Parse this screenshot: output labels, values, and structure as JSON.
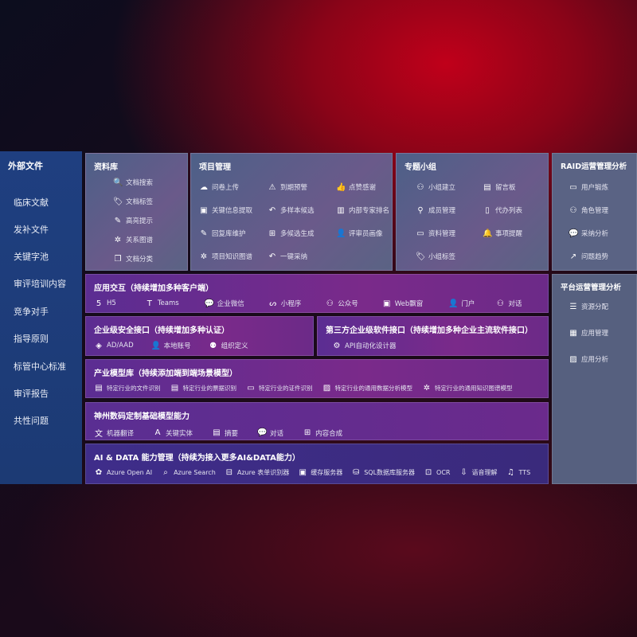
{
  "sidebar": {
    "title": "外部文件",
    "items": [
      "临床文献",
      "发补文件",
      "关键字池",
      "审评培训内容",
      "竞争对手",
      "指导原则",
      "标管中心标准",
      "审评报告",
      "共性问题"
    ]
  },
  "library": {
    "title": "资料库",
    "items": [
      {
        "icon": "doc-search-icon",
        "label": "文档搜索"
      },
      {
        "icon": "tag-icon",
        "label": "文档标签"
      },
      {
        "icon": "pen-icon",
        "label": "高亮提示"
      },
      {
        "icon": "graph-icon",
        "label": "关系图谱"
      },
      {
        "icon": "doc-copy-icon",
        "label": "文档分类"
      }
    ]
  },
  "project": {
    "title": "项目管理",
    "items": [
      {
        "icon": "cloud-upload-icon",
        "label": "问卷上传"
      },
      {
        "icon": "alarm-icon",
        "label": "到期预警"
      },
      {
        "icon": "thumbs-up-icon",
        "label": "点赞感谢"
      },
      {
        "icon": "window-icon",
        "label": "关键信息提取"
      },
      {
        "icon": "reply-icon",
        "label": "多样本候选"
      },
      {
        "icon": "ranking-icon",
        "label": "内部专家排名"
      },
      {
        "icon": "edit-icon",
        "label": "回复库维护"
      },
      {
        "icon": "puzzle-icon",
        "label": "多候选生成"
      },
      {
        "icon": "user-icon",
        "label": "评审员画像"
      },
      {
        "icon": "graph-icon",
        "label": "项目知识图谱"
      },
      {
        "icon": "reply-icon",
        "label": "一键采纳"
      }
    ]
  },
  "group": {
    "title": "专题小组",
    "items": [
      {
        "icon": "group-icon",
        "label": "小组建立"
      },
      {
        "icon": "bbs-icon",
        "label": "留言板"
      },
      {
        "icon": "user-add-icon",
        "label": "成员管理"
      },
      {
        "icon": "clipboard-icon",
        "label": "代办列表"
      },
      {
        "icon": "folder-icon",
        "label": "资料管理"
      },
      {
        "icon": "bell-icon",
        "label": "事项提醒"
      },
      {
        "icon": "tag-icon",
        "label": "小组标签"
      }
    ]
  },
  "raid": {
    "title": "RAID运营管理分析",
    "items": [
      {
        "icon": "id-card-icon",
        "label": "用户锻炼"
      },
      {
        "icon": "group-icon",
        "label": "角色管理"
      },
      {
        "icon": "qa-icon",
        "label": "采纳分析"
      },
      {
        "icon": "trend-icon",
        "label": "问题趋势"
      }
    ]
  },
  "platform": {
    "title": "平台运营管理分析",
    "items": [
      {
        "icon": "list-icon",
        "label": "资源分配"
      },
      {
        "icon": "apps-icon",
        "label": "应用管理"
      },
      {
        "icon": "chart-icon",
        "label": "应用分析"
      }
    ]
  },
  "interaction": {
    "title": "应用交互（持续增加多种客户端）",
    "items": [
      {
        "icon": "html5-icon",
        "label": "H5"
      },
      {
        "icon": "teams-icon",
        "label": "Teams"
      },
      {
        "icon": "wechat-icon",
        "label": "企业微信"
      },
      {
        "icon": "miniprogram-icon",
        "label": "小程序"
      },
      {
        "icon": "group-icon",
        "label": "公众号"
      },
      {
        "icon": "window-icon",
        "label": "Web飘窗"
      },
      {
        "icon": "portal-icon",
        "label": "门户"
      },
      {
        "icon": "chat-users-icon",
        "label": "对话"
      }
    ]
  },
  "security": {
    "title": "企业级安全接口（持续增加多种认证）",
    "items": [
      {
        "icon": "ad-icon",
        "label": "AD/AAD"
      },
      {
        "icon": "user-icon",
        "label": "本地账号"
      },
      {
        "icon": "org-icon",
        "label": "组织定义"
      }
    ]
  },
  "thirdparty": {
    "title": "第三方企业级软件接口（持续增加多种企业主流软件接口）",
    "items": [
      {
        "icon": "gear-icon",
        "label": "API自动化设计器"
      }
    ]
  },
  "industry": {
    "title": "产业模型库（持续添加端到端场景模型）",
    "items": [
      {
        "icon": "doc-icon",
        "label": "特定行业的文件识别"
      },
      {
        "icon": "receipt-icon",
        "label": "特定行业的票据识别"
      },
      {
        "icon": "id-card-icon",
        "label": "特定行业的证件识别"
      },
      {
        "icon": "image-icon",
        "label": "特定行业的通用数据分析模型"
      },
      {
        "icon": "graph-icon",
        "label": "特定行业的通用知识图谱模型"
      }
    ]
  },
  "base": {
    "title": "神州数码定制基础模型能力",
    "items": [
      {
        "icon": "translate-icon",
        "label": "机器翻译"
      },
      {
        "icon": "entity-icon",
        "label": "关键实体"
      },
      {
        "icon": "doc-icon",
        "label": "摘要"
      },
      {
        "icon": "chat-icon",
        "label": "对话"
      },
      {
        "icon": "puzzle-icon",
        "label": "内容合成"
      }
    ]
  },
  "ai": {
    "title": "AI & DATA 能力管理（持续为接入更多AI&DATA能力）",
    "items": [
      {
        "icon": "openai-icon",
        "label": "Azure Open AI"
      },
      {
        "icon": "search-icon",
        "label": "Azure Search"
      },
      {
        "icon": "form-icon",
        "label": "Azure 表单识别器"
      },
      {
        "icon": "cache-icon",
        "label": "缓存服务器"
      },
      {
        "icon": "database-icon",
        "label": "SQL数据库服务器"
      },
      {
        "icon": "ocr-icon",
        "label": "OCR"
      },
      {
        "icon": "voice-icon",
        "label": "语音理解"
      },
      {
        "icon": "tts-icon",
        "label": "TTS"
      }
    ]
  }
}
